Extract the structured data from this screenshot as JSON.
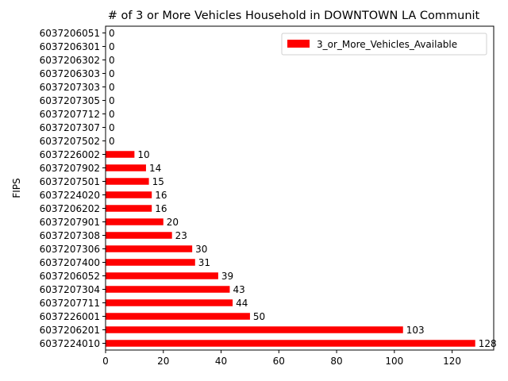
{
  "chart_data": {
    "type": "bar",
    "orientation": "horizontal",
    "title": "# of 3 or More Vehicles Household in DOWNTOWN LA Communit",
    "ylabel": "FIPS",
    "xlabel": "",
    "xlim": [
      0,
      134.4
    ],
    "x_ticks": [
      0,
      20,
      40,
      60,
      80,
      100,
      120
    ],
    "grid": false,
    "legend_position": "top-right",
    "bar_color": "#ff0000",
    "categories": [
      "6037224010",
      "6037206201",
      "6037226001",
      "6037207711",
      "6037207304",
      "6037206052",
      "6037207400",
      "6037207306",
      "6037207308",
      "6037207901",
      "6037206202",
      "6037224020",
      "6037207501",
      "6037207902",
      "6037226002",
      "6037207502",
      "6037207307",
      "6037207712",
      "6037207305",
      "6037207303",
      "6037206303",
      "6037206302",
      "6037206301",
      "6037206051"
    ],
    "series": [
      {
        "name": "3_or_More_Vehicles_Available",
        "values": [
          128,
          103,
          50,
          44,
          43,
          39,
          31,
          30,
          23,
          20,
          16,
          16,
          15,
          14,
          10,
          0,
          0,
          0,
          0,
          0,
          0,
          0,
          0,
          0
        ]
      }
    ]
  }
}
